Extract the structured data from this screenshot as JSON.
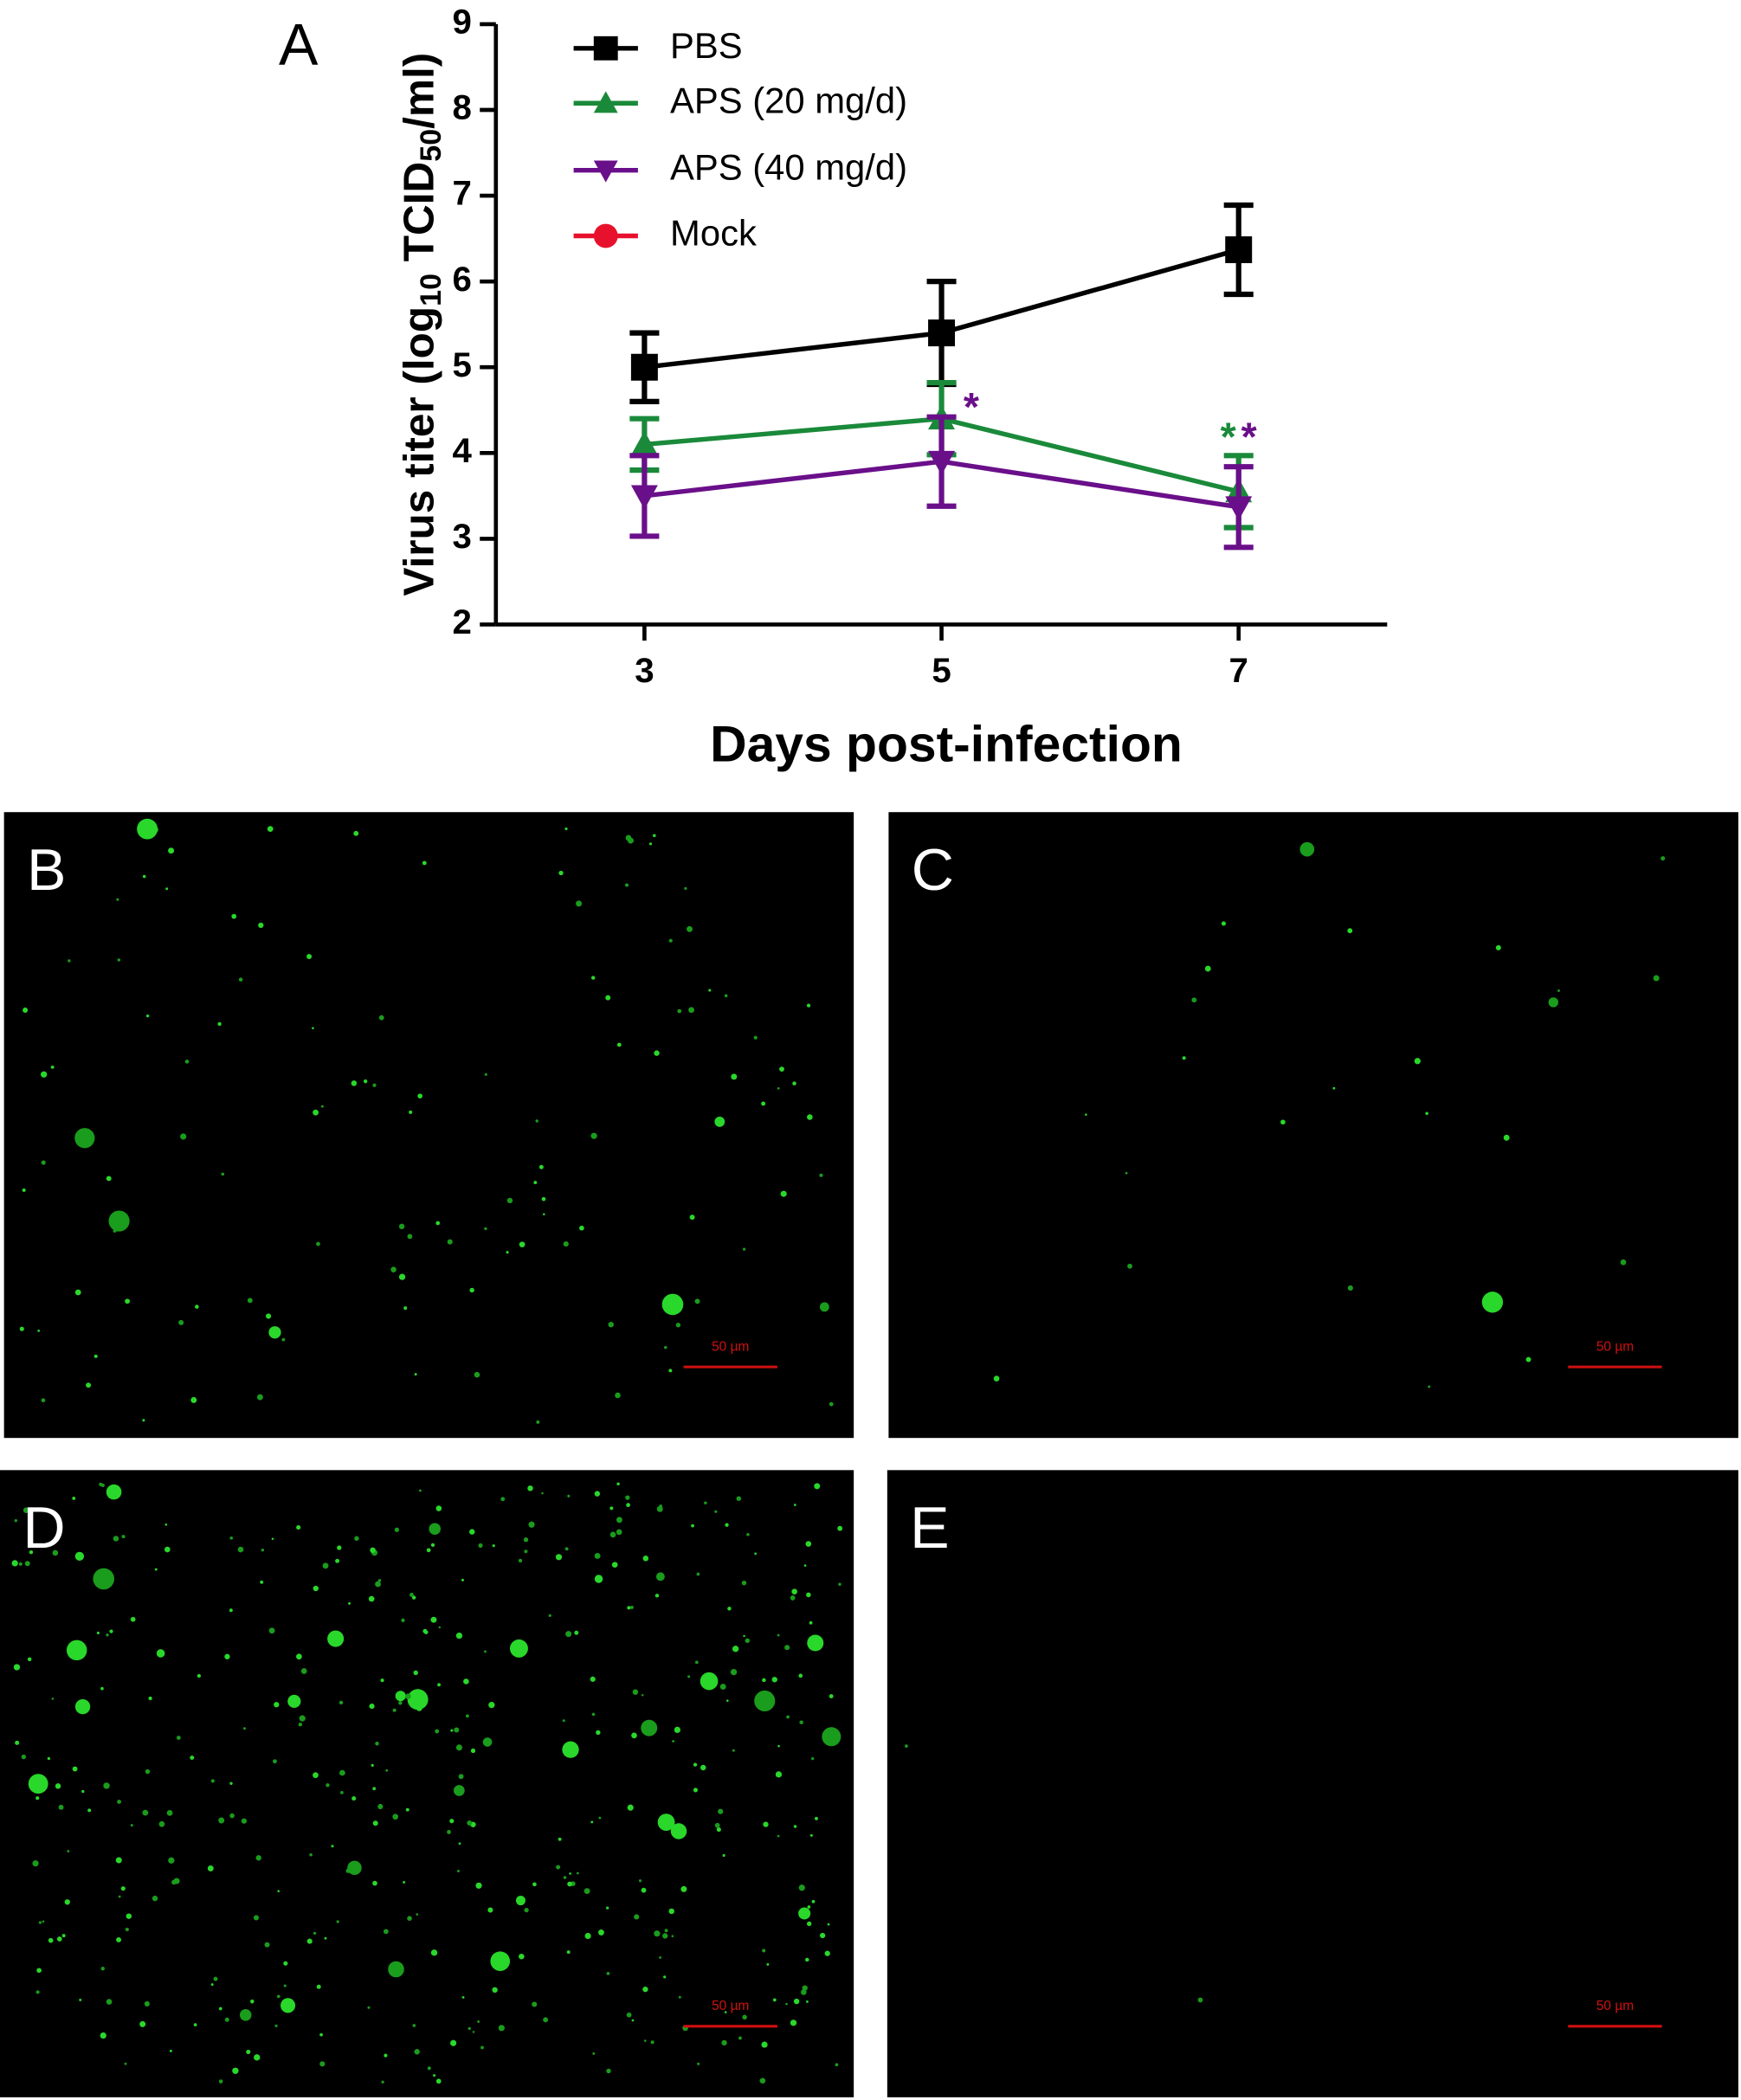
{
  "chart_data": {
    "type": "line",
    "panel_label": "A",
    "ylabel": [
      "Virus titer (log",
      "10",
      " TCID",
      "50",
      "/ml)"
    ],
    "xlabel": "Days post-infection",
    "x": [
      3,
      5,
      7
    ],
    "xlim": [
      2,
      8
    ],
    "xticks": [
      3,
      5,
      7
    ],
    "ylim": [
      2,
      9
    ],
    "yticks": [
      2,
      3,
      4,
      5,
      6,
      7,
      8,
      9
    ],
    "legend": "upper left",
    "series": [
      {
        "name": "PBS",
        "color": "#000000",
        "marker": "square",
        "values": [
          5.0,
          5.4,
          6.37
        ],
        "errors": [
          0.4,
          0.6,
          0.52
        ]
      },
      {
        "name": "APS (20 mg/d)",
        "color": "#1a8a3a",
        "marker": "triangle",
        "values": [
          4.1,
          4.4,
          3.55
        ],
        "errors": [
          0.3,
          0.42,
          0.42
        ]
      },
      {
        "name": "APS (40 mg/d)",
        "color": "#6a0f8a",
        "marker": "triangle-down",
        "values": [
          3.5,
          3.9,
          3.37
        ],
        "errors": [
          0.47,
          0.52,
          0.47
        ]
      },
      {
        "name": "Mock",
        "color": "#e8112d",
        "marker": "circle",
        "values": [
          null,
          null,
          null
        ],
        "errors": [
          null,
          null,
          null
        ]
      }
    ],
    "annotations": [
      {
        "text": "*",
        "color": "#6a0f8a",
        "x": 5.2,
        "y": 4.5
      },
      {
        "text": "*",
        "color": "#1a8a3a",
        "x": 6.93,
        "y": 4.15
      },
      {
        "text": "*",
        "color": "#6a0f8a",
        "x": 7.07,
        "y": 4.15
      }
    ]
  },
  "panels": [
    {
      "label": "B",
      "scale_bar": "50 µm"
    },
    {
      "label": "C",
      "scale_bar": "50 µm"
    },
    {
      "label": "D",
      "scale_bar": "50 µm"
    },
    {
      "label": "E",
      "scale_bar": "50 µm"
    }
  ]
}
